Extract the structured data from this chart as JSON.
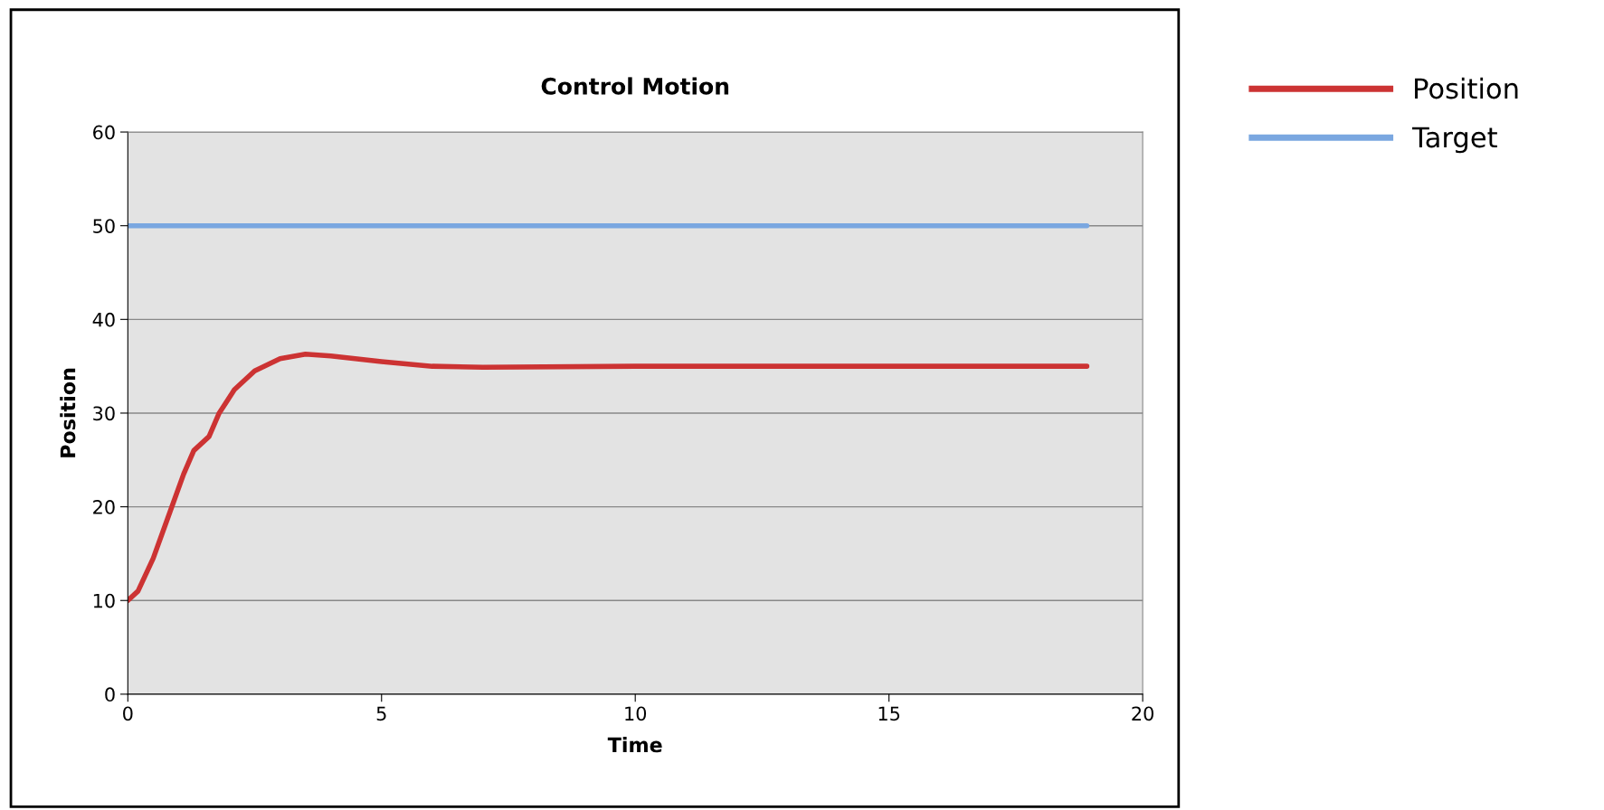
{
  "chart_data": {
    "type": "line",
    "title": "Control Motion",
    "xlabel": "Time",
    "ylabel": "Position",
    "xlim": [
      0,
      20
    ],
    "xticks": [
      0,
      5,
      10,
      15,
      20
    ],
    "ylim": [
      0,
      60
    ],
    "yticks": [
      0,
      10,
      20,
      30,
      40,
      50,
      60
    ],
    "grid": "y",
    "legend": "top right",
    "marker": "none",
    "line_style": "solid",
    "series": [
      {
        "name": "Position",
        "color": "#cc3333",
        "x": [
          0,
          0.2,
          0.5,
          0.8,
          1.1,
          1.3,
          1.6,
          1.8,
          2.1,
          2.5,
          3,
          3.5,
          4,
          5,
          6,
          7,
          10,
          18.9
        ],
        "values": [
          10,
          11,
          14.5,
          19,
          23.5,
          26,
          27.5,
          30,
          32.5,
          34.5,
          35.8,
          36.3,
          36.1,
          35.5,
          35,
          34.9,
          35,
          35
        ]
      },
      {
        "name": "Target",
        "color": "#7aa7e0",
        "x": [
          0,
          18.9
        ],
        "values": [
          50,
          50
        ]
      }
    ]
  }
}
